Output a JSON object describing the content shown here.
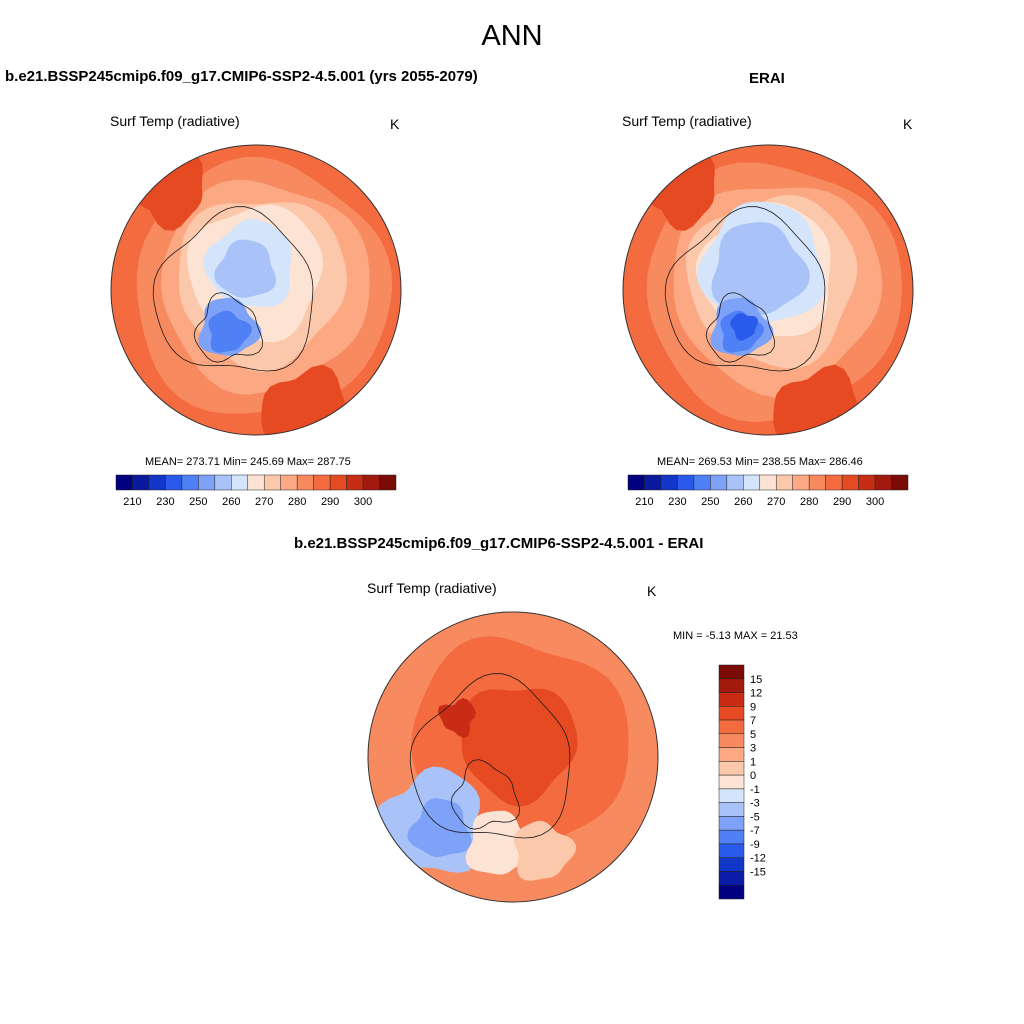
{
  "page": {
    "title": "ANN"
  },
  "colors": {
    "abs_scale": [
      "#000080",
      "#0a1aa0",
      "#1236c8",
      "#2a5aec",
      "#4f80f5",
      "#7da2f7",
      "#a9c2f8",
      "#d4e4fb",
      "#fde3d3",
      "#fcc8ab",
      "#fca883",
      "#f88a60",
      "#f36b3e",
      "#e64a22",
      "#c92c14",
      "#a11a0d",
      "#7a0b06"
    ],
    "diff_scale": [
      "#000080",
      "#0a1ca8",
      "#1236c8",
      "#2a5aec",
      "#4f80f5",
      "#7da2f7",
      "#a9c2f8",
      "#d4e4fb",
      "#fde3d3",
      "#fcc8ab",
      "#fca883",
      "#f88a60",
      "#f36b3e",
      "#e64a22",
      "#c92c14",
      "#a11a0d",
      "#7a0b06"
    ]
  },
  "chart_data": [
    {
      "type": "heatmap",
      "projection": "north-polar-stereographic",
      "panel_title": "b.e21.BSSP245cmip6.f09_g17.CMIP6-SSP2-4.5.001 (yrs 2055-2079)",
      "variable": "Surf Temp (radiative)",
      "units": "K",
      "stats": {
        "label": "MEAN= 273.71  Min= 245.69  Max= 287.75",
        "mean": 273.71,
        "min": 245.69,
        "max": 287.75
      },
      "colorbar": {
        "orientation": "horizontal",
        "levels": [
          210,
          230,
          250,
          260,
          270,
          280,
          290,
          300
        ],
        "tick_labels": [
          "210",
          "230",
          "250",
          "260",
          "270",
          "280",
          "290",
          "300"
        ],
        "n_bins": 16
      }
    },
    {
      "type": "heatmap",
      "projection": "north-polar-stereographic",
      "panel_title": "ERAI",
      "variable": "Surf Temp (radiative)",
      "units": "K",
      "stats": {
        "label": "MEAN= 269.53  Min= 238.55  Max= 286.46",
        "mean": 269.53,
        "min": 238.55,
        "max": 286.46
      },
      "colorbar": {
        "orientation": "horizontal",
        "levels": [
          210,
          230,
          250,
          260,
          270,
          280,
          290,
          300
        ],
        "tick_labels": [
          "210",
          "230",
          "250",
          "260",
          "270",
          "280",
          "290",
          "300"
        ],
        "n_bins": 16
      }
    },
    {
      "type": "heatmap",
      "projection": "north-polar-stereographic",
      "panel_title": "b.e21.BSSP245cmip6.f09_g17.CMIP6-SSP2-4.5.001 - ERAI",
      "variable": "Surf Temp (radiative)",
      "units": "K",
      "stats": {
        "label": "MIN =  -5.13 MAX =  21.53",
        "min": -5.13,
        "max": 21.53
      },
      "colorbar": {
        "orientation": "vertical",
        "levels": [
          15,
          12,
          9,
          7,
          5,
          3,
          1,
          0,
          -1,
          -3,
          -5,
          -7,
          -9,
          -12,
          -15
        ],
        "tick_labels": [
          "15",
          "12",
          "9",
          "7",
          "5",
          "3",
          "1",
          "0",
          "-1",
          "-3",
          "-5",
          "-7",
          "-9",
          "-12",
          "-15"
        ],
        "n_bins": 16
      }
    }
  ]
}
